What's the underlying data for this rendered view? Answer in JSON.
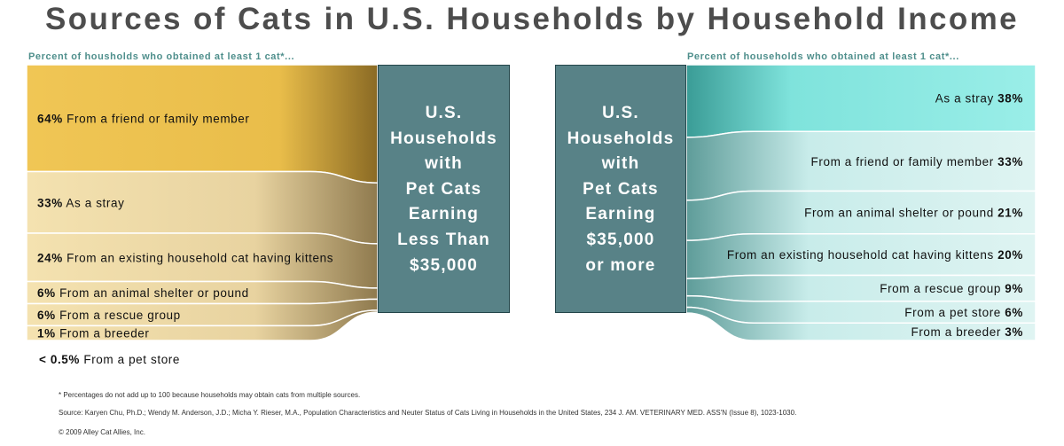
{
  "title": "Sources of Cats in U.S. Households by Household Income",
  "colors": {
    "left_band_dark": "#e6b53f",
    "left_band_light": "#f1dca6",
    "right_band_dark": "#7ce6df",
    "right_band_light": "#dff3f1",
    "center_box": "#588287",
    "subtitle": "#4f8f8c"
  },
  "chart_data": [
    {
      "type": "bar",
      "subtitle": "Percent of housholds who obtained at least 1 cat*...",
      "center_label": [
        "U.S.",
        "Households",
        "with",
        "Pet Cats",
        "Earning",
        "Less Than",
        "$35,000"
      ],
      "categories": [
        "From a friend or family member",
        "As a stray",
        "From an existing household cat having kittens",
        "From an animal shelter or pound",
        "From a rescue group",
        "From a breeder",
        "From a pet store"
      ],
      "value_labels": [
        "64%",
        "33%",
        "24%",
        "6%",
        "6%",
        "1%",
        "< 0.5%"
      ],
      "values": [
        64,
        33,
        24,
        6,
        6,
        1,
        0.5
      ]
    },
    {
      "type": "bar",
      "subtitle": "Percent of households who obtained at least 1 cat*...",
      "center_label": [
        "U.S.",
        "Households",
        "with",
        "Pet Cats",
        "Earning",
        "$35,000",
        "or more"
      ],
      "categories": [
        "As a stray",
        "From a friend or family member",
        "From an animal shelter or pound",
        "From an existing household cat having kittens",
        "From a rescue group",
        "From a pet store",
        "From a breeder"
      ],
      "value_labels": [
        "38%",
        "33%",
        "21%",
        "20%",
        "9%",
        "6%",
        "3%"
      ],
      "values": [
        38,
        33,
        21,
        20,
        9,
        6,
        3
      ]
    }
  ],
  "footnotes": {
    "note": "* Percentages do not add up to 100 because households may obtain cats from multiple sources.",
    "source": "Source: Karyen Chu, Ph.D.; Wendy M. Anderson, J.D.; Micha Y. Rieser, M.A., Population Characteristics and Neuter Status of Cats Living in Households in the United States, 234 J. AM. VETERINARY MED. ASS'N (Issue 8), 1023-1030.",
    "copyright": "© 2009 Alley Cat Allies, Inc."
  }
}
